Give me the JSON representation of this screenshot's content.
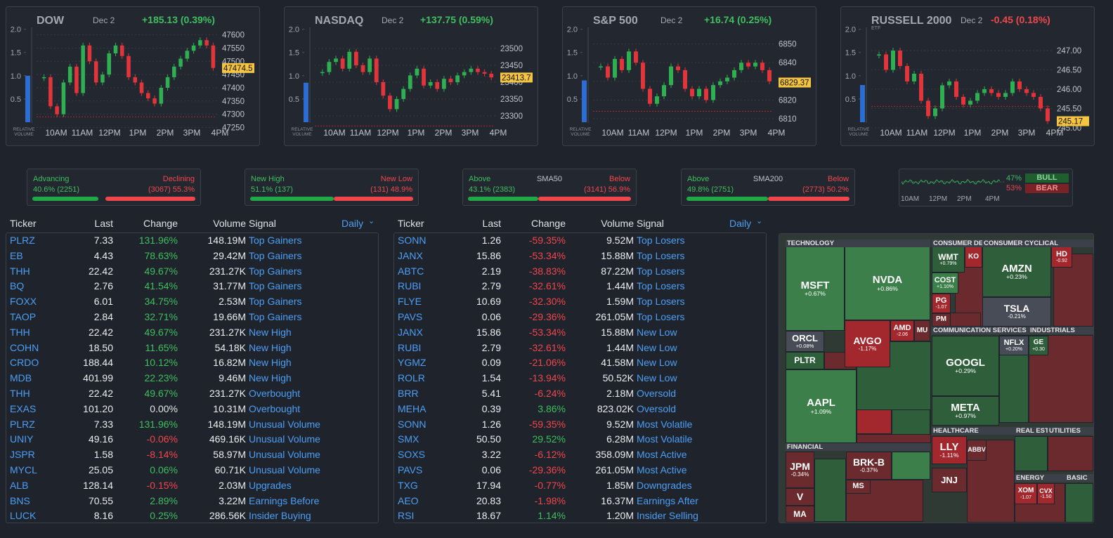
{
  "indices": [
    {
      "name": "DOW",
      "date": "Dec 2",
      "change": "+185.13 (0.39%)",
      "price": 47474.5,
      "ylim": [
        47230,
        47615
      ],
      "yticks": [
        47250,
        47300,
        47350,
        47400,
        47450,
        47500,
        47550,
        47600
      ],
      "volume_lim": [
        0,
        2.1
      ],
      "volume_ticks": [
        {
          "value": 2,
          "label": "2.0"
        },
        1.5,
        {
          "value": 1,
          "label": "1.0"
        },
        0.5
      ],
      "relative_volume": 1.0,
      "volume_label": [
        "RELATIVE",
        "VOLUME"
      ],
      "times": [
        "10AM",
        "11AM",
        "12PM",
        "1PM",
        "2PM",
        "3PM",
        "4PM"
      ],
      "prev_close": 47290,
      "closes": [
        47440,
        47330,
        47300,
        47420,
        47480,
        47380,
        47560,
        47500,
        47420,
        47450,
        47530,
        47560,
        47520,
        47440,
        47420,
        47380,
        47360,
        47340,
        47400,
        47440,
        47480,
        47510,
        47540,
        47560,
        47580,
        47560,
        47475
      ]
    },
    {
      "name": "NASDAQ",
      "date": "Dec 2",
      "change": "+137.75 (0.59%)",
      "price": 23413.7,
      "ylim": [
        23250,
        23552
      ],
      "yticks": [
        23300,
        23350,
        23400,
        23450,
        23500
      ],
      "volume_lim": [
        0,
        2.1
      ],
      "volume_ticks": [
        {
          "value": 2,
          "label": "2.0"
        },
        1.5,
        {
          "value": 1,
          "label": "1.0"
        },
        0.5
      ],
      "relative_volume": 0.85,
      "volume_label": [
        "RELATIVE",
        "VOLUME"
      ],
      "times": [
        "10AM",
        "11AM",
        "12PM",
        "1PM",
        "2PM",
        "3PM",
        "4PM"
      ],
      "prev_close": 23270,
      "closes": [
        23430,
        23460,
        23470,
        23440,
        23490,
        23450,
        23430,
        23470,
        23400,
        23360,
        23320,
        23350,
        23380,
        23420,
        23440,
        23390,
        23400,
        23380,
        23410,
        23400,
        23420,
        23430,
        23440,
        23430,
        23425,
        23414
      ]
    },
    {
      "name": "S&P 500",
      "date": "Dec 2",
      "change": "+16.74 (0.25%)",
      "price": 6829.37,
      "ylim": [
        6802.5,
        6857
      ],
      "yticks": [
        6810,
        6820,
        6830,
        6840,
        6850
      ],
      "volume_lim": [
        0,
        2.1
      ],
      "volume_ticks": [
        {
          "value": 2,
          "label": "2.0"
        },
        1.5,
        {
          "value": 1,
          "label": "1.0"
        },
        0.5
      ],
      "relative_volume": 0.9,
      "volume_label": [
        "RELATIVE",
        "VOLUME"
      ],
      "times": [
        "10AM",
        "11AM",
        "12PM",
        "1PM",
        "2PM",
        "3PM",
        "4PM"
      ],
      "prev_close": 6814,
      "closes": [
        6838,
        6832,
        6842,
        6836,
        6846,
        6840,
        6826,
        6818,
        6822,
        6828,
        6838,
        6836,
        6826,
        6822,
        6826,
        6820,
        6828,
        6830,
        6832,
        6836,
        6840,
        6838,
        6840,
        6836,
        6830
      ]
    },
    {
      "name": "RUSSELL 2000",
      "tag": "ETF",
      "date": "Dec 2",
      "change": "-0.45 (0.18%)",
      "price": 245.17,
      "ylim": [
        244.87,
        247.51
      ],
      "yticks": [
        {
          "value": 245,
          "label": "245.00"
        },
        {
          "value": 245.5,
          "label": "245.50"
        },
        {
          "value": 246,
          "label": "246.00"
        },
        {
          "value": 246.5,
          "label": "246.50"
        },
        {
          "value": 247,
          "label": "247.00"
        }
      ],
      "volume_lim": [
        0,
        2.1
      ],
      "volume_ticks": [
        {
          "value": 2,
          "label": "2.0"
        },
        1.5,
        {
          "value": 1,
          "label": "1.0"
        },
        0.5
      ],
      "relative_volume": 0.8,
      "volume_label": [
        "RELATIVE",
        "VOLUME"
      ],
      "times": [
        "10AM",
        "11AM",
        "12PM",
        "1PM",
        "2PM",
        "3PM",
        "4PM"
      ],
      "prev_close": 245.55,
      "closes": [
        246.9,
        246.5,
        247.0,
        246.6,
        246.2,
        246.4,
        245.7,
        245.3,
        245.5,
        246.1,
        246.2,
        245.8,
        245.6,
        245.7,
        245.9,
        246.0,
        245.9,
        245.8,
        245.9,
        246.2,
        246.0,
        245.9,
        245.8,
        245.5,
        245.17
      ]
    }
  ],
  "breadth": [
    {
      "left_label": "Advancing",
      "right_label": "Declining",
      "left_value": "40.6% (2251)",
      "right_value": "(3067) 55.3%",
      "left_pct": 40.6,
      "right_pct": 55.3
    },
    {
      "left_label": "New High",
      "right_label": "New Low",
      "left_value": "51.1% (137)",
      "right_value": "(131) 48.9%",
      "left_pct": 51.1,
      "right_pct": 48.9
    },
    {
      "left_label": "Above",
      "center_label": "SMA50",
      "right_label": "Below",
      "left_value": "43.1% (2383)",
      "right_value": "(3141) 56.9%",
      "left_pct": 43.1,
      "right_pct": 56.9
    },
    {
      "left_label": "Above",
      "center_label": "SMA200",
      "right_label": "Below",
      "left_value": "49.8% (2751)",
      "right_value": "(2773) 50.2%",
      "left_pct": 49.8,
      "right_pct": 50.2
    }
  ],
  "sentiment": {
    "bull_percent": "47%",
    "bear_percent": "53%",
    "bull_label": "BULL",
    "bear_label": "BEAR",
    "times": [
      "10AM",
      "12PM",
      "2PM",
      "4PM"
    ]
  },
  "tables": [
    {
      "columns": [
        "Ticker",
        "Last",
        "Change",
        "Volume",
        "Signal"
      ],
      "period": "Daily",
      "rows": [
        [
          "PLRZ",
          "7.33",
          "131.96%",
          "148.19M",
          "Top Gainers"
        ],
        [
          "EB",
          "4.43",
          "78.63%",
          "29.42M",
          "Top Gainers"
        ],
        [
          "THH",
          "22.42",
          "49.67%",
          "231.27K",
          "Top Gainers"
        ],
        [
          "BQ",
          "2.76",
          "41.54%",
          "31.77M",
          "Top Gainers"
        ],
        [
          "FOXX",
          "6.01",
          "34.75%",
          "2.53M",
          "Top Gainers"
        ],
        [
          "TAOP",
          "2.84",
          "32.71%",
          "19.66M",
          "Top Gainers"
        ],
        [
          "THH",
          "22.42",
          "49.67%",
          "231.27K",
          "New High"
        ],
        [
          "COHN",
          "18.50",
          "11.65%",
          "54.18K",
          "New High"
        ],
        [
          "CRDO",
          "188.44",
          "10.12%",
          "16.82M",
          "New High"
        ],
        [
          "MDB",
          "401.99",
          "22.23%",
          "9.46M",
          "New High"
        ],
        [
          "THH",
          "22.42",
          "49.67%",
          "231.27K",
          "Overbought"
        ],
        [
          "EXAS",
          "101.20",
          "0.00%",
          "10.31M",
          "Overbought"
        ],
        [
          "PLRZ",
          "7.33",
          "131.96%",
          "148.19M",
          "Unusual Volume"
        ],
        [
          "UNIY",
          "49.16",
          "-0.06%",
          "469.16K",
          "Unusual Volume"
        ],
        [
          "JSPR",
          "1.58",
          "-8.14%",
          "58.97M",
          "Unusual Volume"
        ],
        [
          "MYCL",
          "25.05",
          "0.06%",
          "60.71K",
          "Unusual Volume"
        ],
        [
          "ALB",
          "128.14",
          "-0.15%",
          "2.03M",
          "Upgrades"
        ],
        [
          "BNS",
          "70.55",
          "2.89%",
          "3.22M",
          "Earnings Before"
        ],
        [
          "LUCK",
          "8.16",
          "0.25%",
          "286.56K",
          "Insider Buying"
        ]
      ]
    },
    {
      "columns": [
        "Ticker",
        "Last",
        "Change",
        "Volume",
        "Signal"
      ],
      "period": "Daily",
      "rows": [
        [
          "SONN",
          "1.26",
          "-59.35%",
          "9.52M",
          "Top Losers"
        ],
        [
          "JANX",
          "15.86",
          "-53.34%",
          "15.88M",
          "Top Losers"
        ],
        [
          "ABTC",
          "2.19",
          "-38.83%",
          "87.22M",
          "Top Losers"
        ],
        [
          "RUBI",
          "2.79",
          "-32.61%",
          "1.44M",
          "Top Losers"
        ],
        [
          "FLYE",
          "10.69",
          "-32.30%",
          "1.59M",
          "Top Losers"
        ],
        [
          "PAVS",
          "0.06",
          "-29.36%",
          "261.05M",
          "Top Losers"
        ],
        [
          "JANX",
          "15.86",
          "-53.34%",
          "15.88M",
          "New Low"
        ],
        [
          "RUBI",
          "2.79",
          "-32.61%",
          "1.44M",
          "New Low"
        ],
        [
          "YGMZ",
          "0.09",
          "-21.06%",
          "41.58M",
          "New Low"
        ],
        [
          "ROLR",
          "1.54",
          "-13.94%",
          "50.52K",
          "New Low"
        ],
        [
          "BRR",
          "5.41",
          "-6.24%",
          "2.18M",
          "Oversold"
        ],
        [
          "MEHA",
          "0.39",
          "3.86%",
          "823.02K",
          "Oversold"
        ],
        [
          "SONN",
          "1.26",
          "-59.35%",
          "9.52M",
          "Most Volatile"
        ],
        [
          "SMX",
          "50.50",
          "29.52%",
          "6.28M",
          "Most Volatile"
        ],
        [
          "SOXS",
          "3.22",
          "-6.12%",
          "358.09M",
          "Most Active"
        ],
        [
          "PAVS",
          "0.06",
          "-29.36%",
          "261.05M",
          "Most Active"
        ],
        [
          "TXG",
          "17.94",
          "-0.77%",
          "1.85M",
          "Downgrades"
        ],
        [
          "AEO",
          "20.83",
          "-1.98%",
          "16.37M",
          "Earnings After"
        ],
        [
          "RSI",
          "18.67",
          "1.14%",
          "1.20M",
          "Insider Selling"
        ]
      ]
    }
  ],
  "heatmap": {
    "sectors": [
      "TECHNOLOGY",
      "CONSUMER DE",
      "CONSUMER CYCLICAL",
      "COMMUNICATION SERVICES",
      "INDUSTRIALS",
      "FINANCIAL",
      "HEALTHCARE",
      "REAL EST",
      "UTILITIES",
      "ENERGY",
      "BASIC"
    ],
    "tiles": [
      {
        "ticker": "MSFT",
        "change": "+0.67%"
      },
      {
        "ticker": "NVDA",
        "change": "+0.86%"
      },
      {
        "ticker": "ORCL",
        "change": "+0.08%"
      },
      {
        "ticker": "PLTR"
      },
      {
        "ticker": "AVGO",
        "change": "-1.17%"
      },
      {
        "ticker": "AMD",
        "change": "-2.06"
      },
      {
        "ticker": "MU"
      },
      {
        "ticker": "AAPL",
        "change": "+1.09%"
      },
      {
        "ticker": "WMT",
        "change": "+0.79%"
      },
      {
        "ticker": "KO"
      },
      {
        "ticker": "COST",
        "change": "+1.10%"
      },
      {
        "ticker": "PG",
        "change": "-1.07"
      },
      {
        "ticker": "PM"
      },
      {
        "ticker": "AMZN",
        "change": "+0.23%"
      },
      {
        "ticker": "TSLA",
        "change": "-0.21%"
      },
      {
        "ticker": "HD",
        "change": "-0.92"
      },
      {
        "ticker": "GOOGL",
        "change": "+0.29%"
      },
      {
        "ticker": "META",
        "change": "+0.97%"
      },
      {
        "ticker": "NFLX",
        "change": "+0.20%"
      },
      {
        "ticker": "GE",
        "change": "+0.30"
      },
      {
        "ticker": "JPM",
        "change": "-0.34%"
      },
      {
        "ticker": "V"
      },
      {
        "ticker": "MA"
      },
      {
        "ticker": "BRK-B",
        "change": "-0.37%"
      },
      {
        "ticker": "MS"
      },
      {
        "ticker": "LLY",
        "change": "-1.11%"
      },
      {
        "ticker": "JNJ"
      },
      {
        "ticker": "ABBV"
      },
      {
        "ticker": "XOM",
        "change": "-1.07"
      },
      {
        "ticker": "CVX",
        "change": "-1.50"
      }
    ]
  }
}
